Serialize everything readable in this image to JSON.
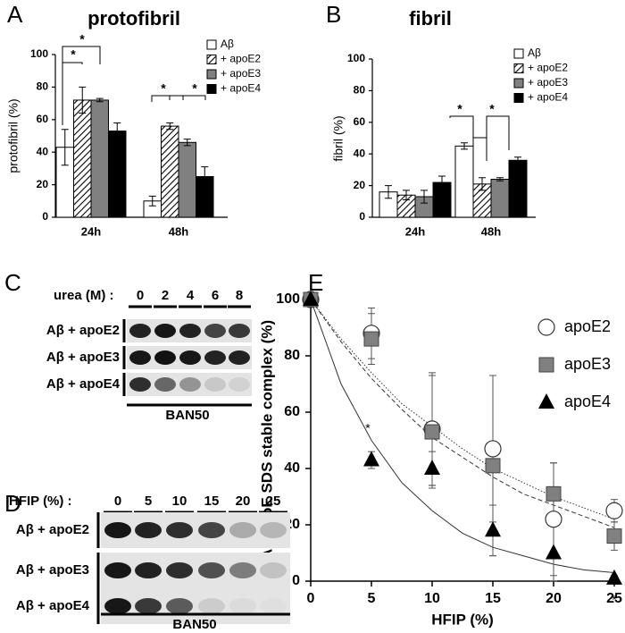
{
  "chart_data": [
    {
      "type": "bar",
      "panel": "A",
      "title": "protofibril",
      "ylabel": "protofibril (%)",
      "categories": [
        "24h",
        "48h"
      ],
      "ylim": [
        0,
        100
      ],
      "yticks": [
        0,
        20,
        40,
        60,
        80,
        100
      ],
      "series": [
        {
          "name": "Aβ",
          "color": "#ffffff",
          "values": [
            43,
            10
          ],
          "errors": [
            11,
            3
          ]
        },
        {
          "name": "+ apoE2",
          "color": "#ffffff",
          "pattern": "hatch",
          "values": [
            72,
            56
          ],
          "errors": [
            8,
            2
          ]
        },
        {
          "name": "+ apoE3",
          "color": "#808080",
          "values": [
            72,
            46
          ],
          "errors": [
            1,
            2
          ]
        },
        {
          "name": "+ apoE4",
          "color": "#000000",
          "values": [
            53,
            25
          ],
          "errors": [
            5,
            6
          ]
        }
      ],
      "annotations": [
        "*",
        "*",
        "*",
        "*"
      ]
    },
    {
      "type": "bar",
      "panel": "B",
      "title": "fibril",
      "ylabel": "fibril (%)",
      "categories": [
        "24h",
        "48h"
      ],
      "ylim": [
        0,
        100
      ],
      "yticks": [
        0,
        20,
        40,
        60,
        80,
        100
      ],
      "series": [
        {
          "name": "Aβ",
          "color": "#ffffff",
          "values": [
            16,
            45
          ],
          "errors": [
            4,
            2
          ]
        },
        {
          "name": "+ apoE2",
          "color": "#ffffff",
          "pattern": "hatch",
          "values": [
            14,
            21
          ],
          "errors": [
            3,
            4
          ]
        },
        {
          "name": "+ apoE3",
          "color": "#808080",
          "values": [
            13,
            24
          ],
          "errors": [
            4,
            1
          ]
        },
        {
          "name": "+ apoE4",
          "color": "#000000",
          "values": [
            22,
            36
          ],
          "errors": [
            4,
            2
          ]
        }
      ],
      "annotations": [
        "*",
        "*"
      ]
    },
    {
      "type": "scatter",
      "panel": "E",
      "xlabel": "HFIP (%)",
      "ylabel": "Aβ-apoE SDS stable complex (%)",
      "xlim": [
        0,
        25
      ],
      "xticks": [
        0,
        5,
        10,
        15,
        20,
        25
      ],
      "ylim": [
        0,
        100
      ],
      "yticks": [
        0,
        20,
        40,
        60,
        80,
        100
      ],
      "series": [
        {
          "name": "apoE2",
          "marker": "circle",
          "color": "#ffffff",
          "x": [
            0,
            5,
            10,
            15,
            20,
            25
          ],
          "values": [
            100,
            88,
            54,
            47,
            22,
            25
          ],
          "errors": [
            0,
            9,
            20,
            26,
            20,
            4
          ]
        },
        {
          "name": "apoE3",
          "marker": "square",
          "color": "#808080",
          "x": [
            0,
            5,
            10,
            15,
            20,
            25
          ],
          "values": [
            100,
            86,
            53,
            41,
            31,
            16
          ],
          "errors": [
            0,
            9,
            20,
            32,
            11,
            5
          ]
        },
        {
          "name": "apoE4",
          "marker": "triangle",
          "color": "#000000",
          "x": [
            0,
            5,
            10,
            15,
            20,
            25
          ],
          "values": [
            100,
            43,
            40,
            18,
            10,
            1
          ],
          "errors": [
            0,
            3,
            6,
            9,
            10,
            1
          ]
        }
      ],
      "fits": [
        {
          "style": "dotted",
          "x": [
            0,
            2.5,
            5,
            7.5,
            10,
            12.5,
            15,
            17.5,
            20,
            22.5,
            25
          ],
          "values": [
            100,
            86,
            74,
            63,
            55,
            47,
            40,
            35,
            30,
            26,
            22
          ]
        },
        {
          "style": "dashed",
          "x": [
            0,
            2.5,
            5,
            7.5,
            10,
            12.5,
            15,
            17.5,
            20,
            22.5,
            25
          ],
          "values": [
            100,
            85,
            72,
            61,
            51,
            44,
            37,
            31,
            27,
            23,
            19
          ]
        },
        {
          "style": "solid",
          "x": [
            0,
            2.5,
            5,
            7.5,
            10,
            12.5,
            15,
            17.5,
            20,
            22.5,
            25
          ],
          "values": [
            100,
            70,
            50,
            35,
            25,
            17,
            12,
            9,
            6,
            4,
            3
          ]
        }
      ],
      "annotations": [
        "*",
        "*"
      ]
    }
  ],
  "blots": [
    {
      "panel": "C",
      "header": "urea (M) :",
      "lanes": [
        "0",
        "2",
        "4",
        "6",
        "8"
      ],
      "rows": [
        "Aβ + apoE2",
        "Aβ + apoE3",
        "Aβ + apoE4"
      ],
      "antibody": "BAN50"
    },
    {
      "panel": "D",
      "header": "HFIP (%) :",
      "lanes": [
        "0",
        "5",
        "10",
        "15",
        "20",
        "25"
      ],
      "rows": [
        "Aβ + apoE2",
        "Aβ + apoE3",
        "Aβ + apoE4"
      ],
      "antibody": "BAN50"
    }
  ]
}
